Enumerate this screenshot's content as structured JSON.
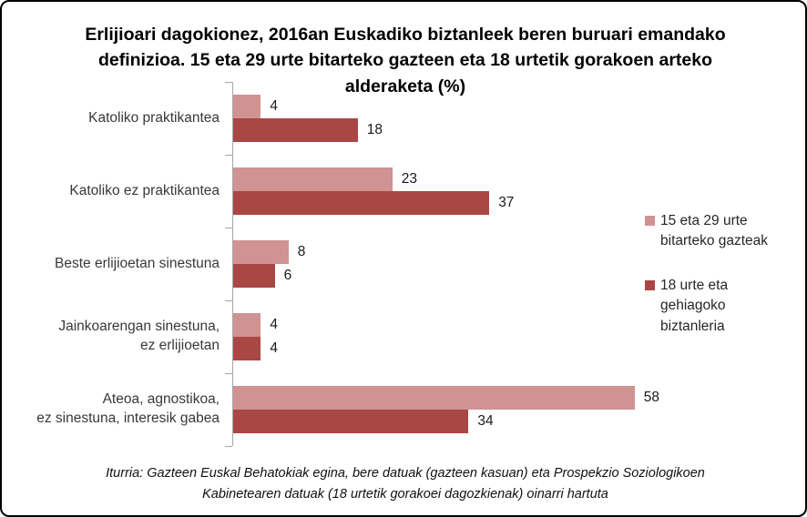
{
  "title": "Erlijioari dagokionez, 2016an Euskadiko biztanleek beren buruari emandako definizioa.  15 eta 29 urte bitarteko gazteen eta 18 urtetik gorakoen arteko alderaketa (%)",
  "source_note": "Iturria: Gazteen Euskal Behatokiak egina, bere datuak (gazteen kasuan) eta Prospekzio Soziologikoen Kabinetearen datuak (18 urtetik gorakoei dagozkienak) oinarri hartuta",
  "colors": {
    "series_young": "#d09293",
    "series_adult": "#a94744",
    "axis": "#a6a6a6"
  },
  "chart_data": {
    "type": "bar",
    "orientation": "horizontal",
    "title": "Erlijioari dagokionez, 2016an Euskadiko biztanleek beren buruari emandako definizioa.  15 eta 29 urte bitarteko gazteen eta 18 urtetik gorakoen arteko alderaketa (%)",
    "categories": [
      "Katoliko praktikantea",
      "Katoliko ez praktikantea",
      "Beste erlijioetan sinestuna",
      "Jainkoarengan sinestuna,\nez erlijioetan",
      "Ateoa, agnostikoa,\nez sinestuna, interesik gabea"
    ],
    "series": [
      {
        "name": "15 eta 29 urte bitarteko gazteak",
        "color": "#d09293",
        "values": [
          4,
          23,
          8,
          4,
          58
        ]
      },
      {
        "name": "18 urte eta gehiagoko biztanleria",
        "color": "#a94744",
        "values": [
          18,
          37,
          6,
          4,
          34
        ]
      }
    ],
    "xlim": [
      0,
      60
    ],
    "data_labels": true,
    "legend_position": "right",
    "grid": false,
    "xlabel": "",
    "ylabel": ""
  }
}
